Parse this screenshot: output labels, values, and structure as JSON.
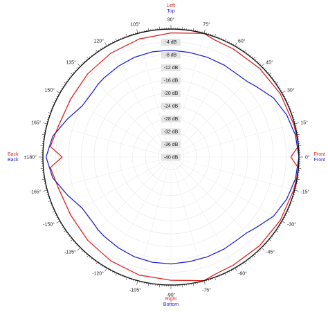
{
  "chart_data": {
    "type": "polar-line",
    "angle_unit": "degrees",
    "angle_direction": "counterclockwise, 0° at right (Front)",
    "radial_unit": "dB",
    "rlim": [
      -40,
      0
    ],
    "radial_ticks": [
      "-4 dB",
      "-8 dB",
      "-12 dB",
      "-16 dB",
      "-20 dB",
      "-24 dB",
      "-28 dB",
      "-32 dB",
      "-36 dB",
      "-40 dB"
    ],
    "radial_tick_values": [
      -4,
      -8,
      -12,
      -16,
      -20,
      -24,
      -28,
      -32,
      -36,
      -40
    ],
    "angle_ticks": [
      "0°",
      "15°",
      "30°",
      "45°",
      "60°",
      "75°",
      "90°",
      "105°",
      "120°",
      "135°",
      "150°",
      "165°",
      "±180°",
      "-165°",
      "-150°",
      "-135°",
      "-120°",
      "-105°",
      "-90°",
      "-75°",
      "-60°",
      "-45°",
      "-30°",
      "-15°"
    ],
    "angle_tick_values": [
      0,
      15,
      30,
      45,
      60,
      75,
      90,
      105,
      120,
      135,
      150,
      165,
      180,
      -165,
      -150,
      -135,
      -120,
      -105,
      -90,
      -75,
      -60,
      -45,
      -30,
      -15
    ],
    "direction_labels": {
      "top_red": "Left",
      "top_blue": "Top",
      "bottom_red": "Right",
      "bottom_blue": "Bottom",
      "left_red": "Back",
      "left_blue": "Back",
      "right_red": "Front",
      "right_blue": "Front"
    },
    "series": [
      {
        "color": "#dd2222",
        "angles": [
          0,
          5,
          10,
          15,
          30,
          45,
          60,
          70,
          75,
          80,
          90,
          105,
          120,
          135,
          150,
          165,
          175,
          180,
          -175,
          -165,
          -150,
          -135,
          -120,
          -105,
          -90,
          -80,
          -75,
          -70,
          -60,
          -45,
          -30,
          -15,
          -10,
          -5
        ],
        "values": [
          -2.5,
          0,
          -0.2,
          -0.3,
          -0.5,
          -0.8,
          -1.0,
          -0.9,
          0,
          -0.7,
          -1.2,
          -1.8,
          -2.5,
          -3.2,
          -3.8,
          -3.5,
          -2.2,
          -6.0,
          -2.2,
          -3.5,
          -3.8,
          -3.2,
          -2.5,
          -1.8,
          -1.5,
          -0.8,
          0,
          -0.8,
          -1.0,
          -0.8,
          -0.5,
          -0.3,
          -0.2,
          0
        ]
      },
      {
        "color": "#2222cc",
        "angles": [
          0,
          10,
          20,
          30,
          40,
          45,
          50,
          60,
          70,
          80,
          90,
          100,
          110,
          120,
          130,
          135,
          140,
          150,
          160,
          170,
          180,
          -170,
          -160,
          -150,
          -140,
          -135,
          -130,
          -120,
          -110,
          -100,
          -90,
          -80,
          -70,
          -60,
          -50,
          -45,
          -40,
          -30,
          -20,
          -10
        ],
        "values": [
          0,
          -0.5,
          -1.5,
          -3.0,
          -5.5,
          -6.5,
          -6.8,
          -6.8,
          -6.8,
          -6.8,
          -6.6,
          -6.6,
          -6.8,
          -7.2,
          -7.6,
          -7.8,
          -8.2,
          -8.0,
          -5.5,
          -2.5,
          -1.0,
          -2.5,
          -5.5,
          -8.0,
          -8.2,
          -7.8,
          -7.6,
          -7.2,
          -6.8,
          -6.6,
          -6.6,
          -6.8,
          -6.8,
          -6.8,
          -6.8,
          -6.5,
          -5.5,
          -3.0,
          -1.5,
          -0.5
        ]
      }
    ],
    "grid": true
  }
}
